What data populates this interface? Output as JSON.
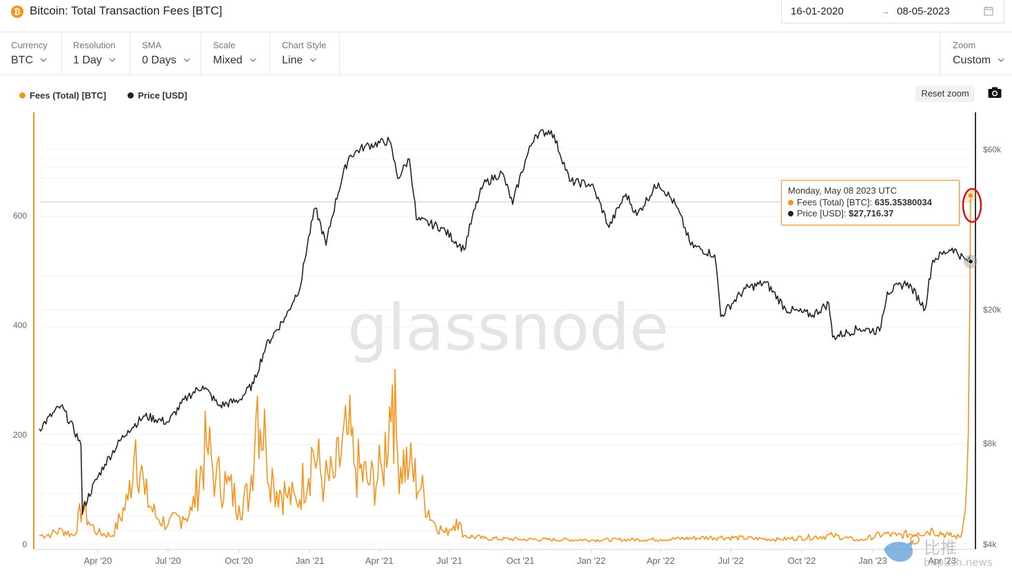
{
  "header": {
    "title": "Bitcoin: Total Transaction Fees [BTC]",
    "coin_symbol": "₿",
    "date_start": "16-01-2020",
    "date_end": "08-05-2023"
  },
  "controls": [
    {
      "label": "Currency",
      "value": "BTC"
    },
    {
      "label": "Resolution",
      "value": "1 Day"
    },
    {
      "label": "SMA",
      "value": "0 Days"
    },
    {
      "label": "Scale",
      "value": "Mixed"
    },
    {
      "label": "Chart Style",
      "value": "Line"
    }
  ],
  "zoom": {
    "label": "Zoom",
    "value": "Custom"
  },
  "legend": [
    {
      "name": "Fees (Total) [BTC]",
      "color": "#f7931a"
    },
    {
      "name": "Price [USD]",
      "color": "#222222"
    }
  ],
  "reset_zoom_label": "Reset zoom",
  "tooltip": {
    "date": "Monday, May 08 2023 UTC",
    "fees_label": "Fees (Total) [BTC]:",
    "fees_value": "635.35380034",
    "price_label": "Price [USD]:",
    "price_value": "$27,716.37"
  },
  "watermarks": {
    "main": "glassnode",
    "corner_text": "比推",
    "corner_domain": "bitpush.news"
  },
  "chart_data": {
    "type": "line",
    "x_ticks": [
      "Apr '20",
      "Jul '20",
      "Oct '20",
      "Jan '21",
      "Apr '21",
      "Jul '21",
      "Oct '21",
      "Jan '22",
      "Apr '22",
      "Jul '22",
      "Oct '22",
      "Jan '23",
      "Apr '23"
    ],
    "x_range": [
      "2020-01-16",
      "2023-05-08"
    ],
    "y_left": {
      "ticks": [
        "0",
        "200",
        "400",
        "600"
      ],
      "range": [
        0,
        800
      ],
      "scale": "linear"
    },
    "y_right": {
      "ticks": [
        "$4k",
        "$8k",
        "$20k",
        "$60k"
      ],
      "range": [
        4000,
        70000
      ],
      "scale": "log"
    },
    "series": [
      {
        "name": "Fees (Total) [BTC]",
        "axis": "left",
        "color": "#f7931a",
        "points": [
          [
            "2020-01-16",
            15
          ],
          [
            "2020-02-01",
            18
          ],
          [
            "2020-02-15",
            25
          ],
          [
            "2020-03-01",
            15
          ],
          [
            "2020-03-12",
            70
          ],
          [
            "2020-03-20",
            40
          ],
          [
            "2020-04-01",
            20
          ],
          [
            "2020-04-20",
            15
          ],
          [
            "2020-05-10",
            80
          ],
          [
            "2020-05-20",
            190
          ],
          [
            "2020-06-01",
            90
          ],
          [
            "2020-06-15",
            50
          ],
          [
            "2020-07-01",
            35
          ],
          [
            "2020-07-20",
            50
          ],
          [
            "2020-08-01",
            60
          ],
          [
            "2020-08-20",
            180
          ],
          [
            "2020-09-01",
            120
          ],
          [
            "2020-09-15",
            110
          ],
          [
            "2020-10-01",
            70
          ],
          [
            "2020-10-15",
            90
          ],
          [
            "2020-10-25",
            270
          ],
          [
            "2020-11-05",
            180
          ],
          [
            "2020-11-15",
            110
          ],
          [
            "2020-12-01",
            90
          ],
          [
            "2020-12-15",
            75
          ],
          [
            "2021-01-05",
            170
          ],
          [
            "2021-01-20",
            110
          ],
          [
            "2021-02-01",
            120
          ],
          [
            "2021-02-20",
            200
          ],
          [
            "2021-03-01",
            140
          ],
          [
            "2021-03-20",
            110
          ],
          [
            "2021-04-05",
            130
          ],
          [
            "2021-04-18",
            290
          ],
          [
            "2021-04-25",
            160
          ],
          [
            "2021-05-10",
            140
          ],
          [
            "2021-05-25",
            100
          ],
          [
            "2021-06-10",
            40
          ],
          [
            "2021-06-25",
            20
          ],
          [
            "2021-07-01",
            25
          ],
          [
            "2021-07-10",
            45
          ],
          [
            "2021-07-20",
            15
          ],
          [
            "2021-08-15",
            10
          ],
          [
            "2021-10-01",
            8
          ],
          [
            "2022-01-01",
            7
          ],
          [
            "2022-04-01",
            8
          ],
          [
            "2022-06-15",
            12
          ],
          [
            "2022-09-01",
            8
          ],
          [
            "2022-11-10",
            15
          ],
          [
            "2022-12-15",
            6
          ],
          [
            "2023-01-15",
            18
          ],
          [
            "2023-02-01",
            15
          ],
          [
            "2023-03-01",
            20
          ],
          [
            "2023-03-20",
            25
          ],
          [
            "2023-04-10",
            15
          ],
          [
            "2023-04-25",
            12
          ],
          [
            "2023-05-01",
            60
          ],
          [
            "2023-05-03",
            110
          ],
          [
            "2023-05-05",
            200
          ],
          [
            "2023-05-07",
            450
          ],
          [
            "2023-05-08",
            635.35380034
          ]
        ]
      },
      {
        "name": "Price [USD]",
        "axis": "right",
        "color": "#222222",
        "points": [
          [
            "2020-01-16",
            8800
          ],
          [
            "2020-02-13",
            10300
          ],
          [
            "2020-03-10",
            7900
          ],
          [
            "2020-03-12",
            4900
          ],
          [
            "2020-03-13",
            5100
          ],
          [
            "2020-04-10",
            6900
          ],
          [
            "2020-05-10",
            8700
          ],
          [
            "2020-06-01",
            9600
          ],
          [
            "2020-07-01",
            9200
          ],
          [
            "2020-07-27",
            11000
          ],
          [
            "2020-08-15",
            11800
          ],
          [
            "2020-09-05",
            10300
          ],
          [
            "2020-10-01",
            10700
          ],
          [
            "2020-10-20",
            12000
          ],
          [
            "2020-11-05",
            15500
          ],
          [
            "2020-12-01",
            19000
          ],
          [
            "2020-12-20",
            23500
          ],
          [
            "2021-01-08",
            40000
          ],
          [
            "2021-01-22",
            31000
          ],
          [
            "2021-02-21",
            57000
          ],
          [
            "2021-03-13",
            61000
          ],
          [
            "2021-04-14",
            63500
          ],
          [
            "2021-04-25",
            49000
          ],
          [
            "2021-05-10",
            56000
          ],
          [
            "2021-05-19",
            37000
          ],
          [
            "2021-06-20",
            35000
          ],
          [
            "2021-07-20",
            30000
          ],
          [
            "2021-08-14",
            47000
          ],
          [
            "2021-09-07",
            51000
          ],
          [
            "2021-09-21",
            41000
          ],
          [
            "2021-10-20",
            66000
          ],
          [
            "2021-11-10",
            68000
          ],
          [
            "2021-12-04",
            48000
          ],
          [
            "2022-01-01",
            47000
          ],
          [
            "2022-01-24",
            35000
          ],
          [
            "2022-02-15",
            44000
          ],
          [
            "2022-03-01",
            38000
          ],
          [
            "2022-03-29",
            47500
          ],
          [
            "2022-04-20",
            41000
          ],
          [
            "2022-05-10",
            31000
          ],
          [
            "2022-06-10",
            29000
          ],
          [
            "2022-06-18",
            19000
          ],
          [
            "2022-07-20",
            23000
          ],
          [
            "2022-08-15",
            24000
          ],
          [
            "2022-09-10",
            20000
          ],
          [
            "2022-10-15",
            19200
          ],
          [
            "2022-11-05",
            20800
          ],
          [
            "2022-11-10",
            16500
          ],
          [
            "2022-12-15",
            17500
          ],
          [
            "2023-01-10",
            17200
          ],
          [
            "2023-01-20",
            22500
          ],
          [
            "2023-02-15",
            24000
          ],
          [
            "2023-03-10",
            20000
          ],
          [
            "2023-03-20",
            28000
          ],
          [
            "2023-04-14",
            30400
          ],
          [
            "2023-05-01",
            28000
          ],
          [
            "2023-05-08",
            27716.37
          ]
        ]
      }
    ]
  }
}
